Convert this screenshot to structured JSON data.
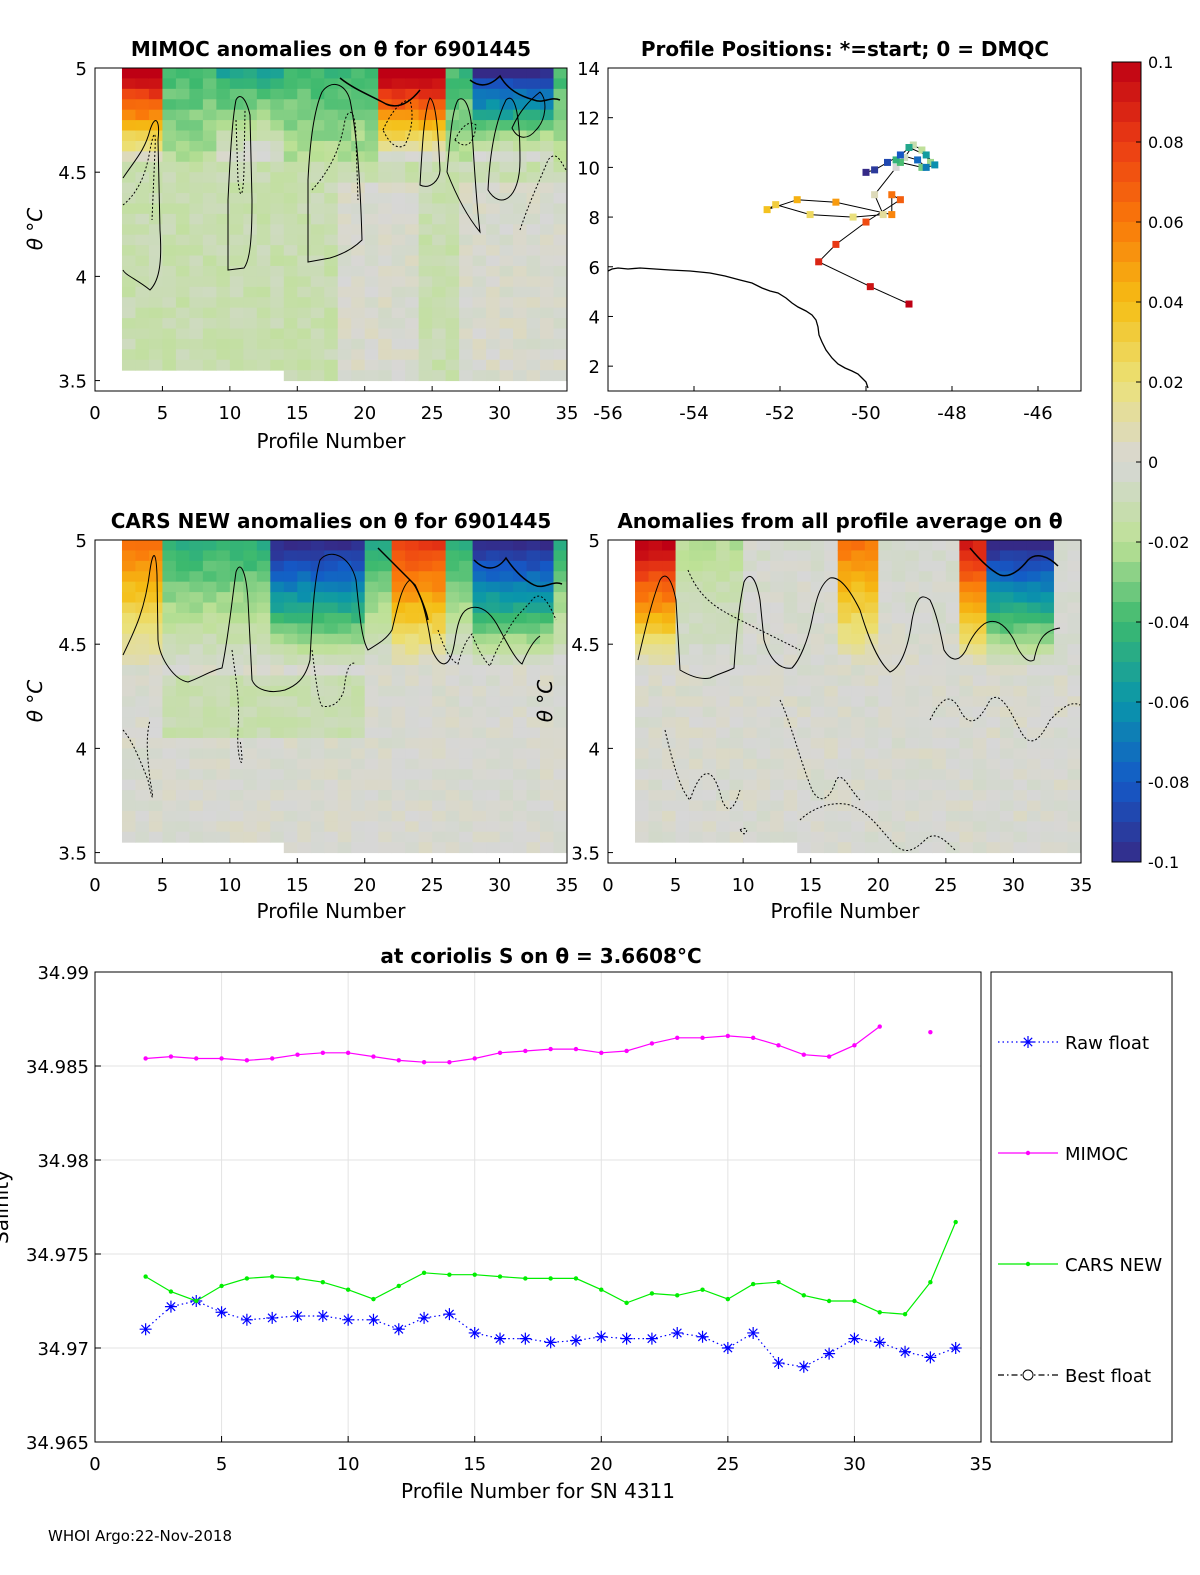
{
  "footer": "WHOI Argo:22-Nov-2018",
  "colorbar": {
    "ticks": [
      "0.1",
      "0.08",
      "0.06",
      "0.04",
      "0.02",
      "0",
      "-0.02",
      "-0.04",
      "-0.06",
      "-0.08",
      "-0.1"
    ],
    "range": [
      -0.1,
      0.1
    ]
  },
  "chart_data": [
    {
      "id": "mimoc",
      "type": "heatmap",
      "title": "MIMOC anomalies on θ  for 6901445",
      "xlabel": "Profile Number",
      "ylabel": "θ °C",
      "xlim": [
        0,
        35
      ],
      "ylim": [
        3.45,
        5
      ],
      "xticks": [
        "0",
        "5",
        "10",
        "15",
        "20",
        "25",
        "30",
        "35"
      ],
      "yticks": [
        "5",
        "4.5",
        "4",
        "3.5"
      ],
      "profile_range": [
        2,
        34
      ],
      "pattern": "mostly slightly negative (light green) anomalies, positive warm anomalies near θ=5 for early profiles and profiles 20-27, strong negative near profiles 28-33 at top"
    },
    {
      "id": "positions",
      "type": "scatter",
      "title": "Profile Positions: *=start; 0 = DMQC",
      "xlim": [
        -56,
        -45
      ],
      "ylim": [
        1,
        14
      ],
      "xticks": [
        "-56",
        "-54",
        "-52",
        "-50",
        "-48",
        "-46"
      ],
      "yticks": [
        "14",
        "12",
        "10",
        "8",
        "6",
        "4",
        "2"
      ],
      "lon": [
        -49.0,
        -49.9,
        -51.1,
        -50.7,
        -50.0,
        -49.2,
        -49.4,
        -49.4,
        -50.7,
        -51.6,
        -52.3,
        -52.1,
        -51.3,
        -50.3,
        -49.6,
        -49.8,
        -49.3,
        -49.1,
        -48.9,
        -48.7,
        -48.5,
        -48.7,
        -49.2,
        -49.3,
        -49.0,
        -48.6,
        -48.4,
        -48.6,
        -48.8,
        -49.2,
        -49.5,
        -49.8,
        -50.0
      ],
      "lat": [
        4.5,
        5.2,
        6.2,
        6.9,
        7.8,
        8.7,
        8.9,
        8.1,
        8.6,
        8.7,
        8.3,
        8.5,
        8.1,
        8.0,
        8.1,
        8.9,
        10.0,
        10.4,
        10.9,
        10.7,
        10.2,
        10.0,
        10.2,
        10.3,
        10.8,
        10.5,
        10.1,
        10.0,
        10.3,
        10.5,
        10.2,
        9.9,
        9.8
      ],
      "colors_by_profile": true
    },
    {
      "id": "cars",
      "type": "heatmap",
      "title": "CARS NEW anomalies on θ for 6901445",
      "xlabel": "Profile Number",
      "ylabel": "θ °C",
      "xlim": [
        0,
        35
      ],
      "ylim": [
        3.45,
        5
      ],
      "xticks": [
        "0",
        "5",
        "10",
        "15",
        "20",
        "25",
        "30",
        "35"
      ],
      "yticks": [
        "5",
        "4.5",
        "4",
        "3.5"
      ],
      "profile_range": [
        2,
        34
      ]
    },
    {
      "id": "avg",
      "type": "heatmap",
      "title": "Anomalies from all profile average on θ",
      "xlabel": "Profile Number",
      "ylabel": "θ °C",
      "xlim": [
        0,
        35
      ],
      "ylim": [
        3.45,
        5
      ],
      "xticks": [
        "0",
        "5",
        "10",
        "15",
        "20",
        "25",
        "30",
        "35"
      ],
      "yticks": [
        "5",
        "4.5",
        "4",
        "3.5"
      ],
      "profile_range": [
        2,
        34
      ]
    },
    {
      "id": "salinity",
      "type": "line",
      "title": "at coriolis S on θ = 3.6608°C",
      "xlabel": "Profile Number for SN 4311",
      "ylabel": "Salinity",
      "xlim": [
        0,
        35
      ],
      "ylim": [
        34.965,
        34.99
      ],
      "xticks": [
        "0",
        "5",
        "10",
        "15",
        "20",
        "25",
        "30",
        "35"
      ],
      "yticks": [
        "34.99",
        "34.985",
        "34.98",
        "34.975",
        "34.97",
        "34.965"
      ],
      "grid": true,
      "legend_position": "outside-right",
      "series": [
        {
          "name": "Raw float",
          "color": "#0000ff",
          "style": "dotted-star",
          "x": [
            2,
            3,
            4,
            5,
            6,
            7,
            8,
            9,
            10,
            11,
            12,
            13,
            14,
            15,
            16,
            17,
            18,
            19,
            20,
            21,
            22,
            23,
            24,
            25,
            26,
            27,
            28,
            29,
            30,
            31,
            32,
            33,
            34
          ],
          "y": [
            34.971,
            34.9722,
            34.9725,
            34.9719,
            34.9715,
            34.9716,
            34.9717,
            34.9717,
            34.9715,
            34.9715,
            34.971,
            34.9716,
            34.9718,
            34.9708,
            34.9705,
            34.9705,
            34.9703,
            34.9704,
            34.9706,
            34.9705,
            34.9705,
            34.9708,
            34.9706,
            34.97,
            34.9708,
            34.9692,
            34.969,
            34.9697,
            34.9705,
            34.9703,
            34.9698,
            34.9695,
            34.97
          ]
        },
        {
          "name": "MIMOC",
          "color": "#ff00ff",
          "style": "solid-dot",
          "x": [
            2,
            3,
            4,
            5,
            6,
            7,
            8,
            9,
            10,
            11,
            12,
            13,
            14,
            15,
            16,
            17,
            18,
            19,
            20,
            21,
            22,
            23,
            24,
            25,
            26,
            27,
            28,
            29,
            30,
            31,
            null,
            33
          ],
          "y": [
            34.9854,
            34.9855,
            34.9854,
            34.9854,
            34.9853,
            34.9854,
            34.9856,
            34.9857,
            34.9857,
            34.9855,
            34.9853,
            34.9852,
            34.9852,
            34.9854,
            34.9857,
            34.9858,
            34.9859,
            34.9859,
            34.9857,
            34.9858,
            34.9862,
            34.9865,
            34.9865,
            34.9866,
            34.9865,
            34.9861,
            34.9856,
            34.9855,
            34.9861,
            34.9871,
            null,
            34.9868
          ]
        },
        {
          "name": "CARS NEW",
          "color": "#00ee00",
          "style": "solid-dot",
          "x": [
            2,
            3,
            4,
            5,
            6,
            7,
            8,
            9,
            10,
            11,
            12,
            13,
            14,
            15,
            16,
            17,
            18,
            19,
            20,
            21,
            22,
            23,
            24,
            25,
            26,
            27,
            28,
            29,
            30,
            31,
            32,
            33,
            34
          ],
          "y": [
            34.9738,
            34.973,
            34.9725,
            34.9733,
            34.9737,
            34.9738,
            34.9737,
            34.9735,
            34.9731,
            34.9726,
            34.9733,
            34.974,
            34.9739,
            34.9739,
            34.9738,
            34.9737,
            34.9737,
            34.9737,
            34.9731,
            34.9724,
            34.9729,
            34.9728,
            34.9731,
            34.9726,
            34.9734,
            34.9735,
            34.9728,
            34.9725,
            34.9725,
            34.9719,
            34.9718,
            34.9735,
            34.9767
          ]
        },
        {
          "name": "Best float",
          "color": "#000000",
          "style": "dashdot-circle",
          "x": [],
          "y": []
        }
      ]
    }
  ]
}
